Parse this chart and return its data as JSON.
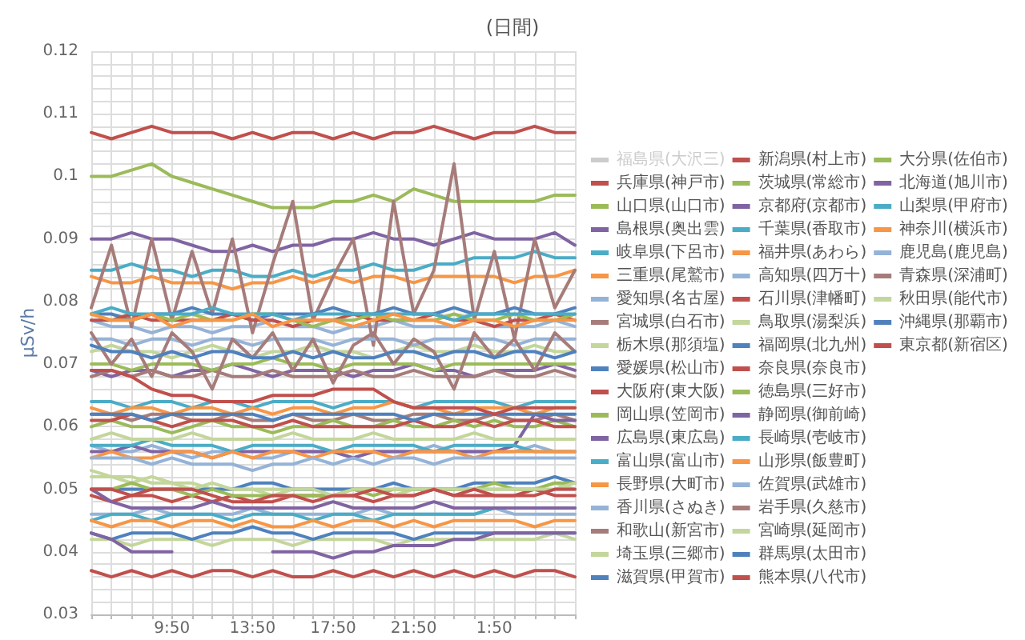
{
  "chart_data": {
    "type": "line",
    "title": "(日間)",
    "ylabel": "μSv/h",
    "categories": [
      null,
      null,
      null,
      null,
      "9:50",
      null,
      null,
      null,
      "13:50",
      null,
      null,
      null,
      "17:50",
      null,
      null,
      null,
      "21:50",
      null,
      null,
      null,
      "1:50",
      null,
      null,
      null,
      null
    ],
    "ylim": [
      0.03,
      0.12
    ],
    "yticks": [
      0.03,
      {
        "value": 0.032,
        "label": null
      },
      {
        "value": 0.034,
        "label": null
      },
      {
        "value": 0.036,
        "label": null
      },
      {
        "value": 0.038,
        "label": null
      },
      0.04,
      {
        "value": 0.042,
        "label": null
      },
      {
        "value": 0.044,
        "label": null
      },
      {
        "value": 0.046,
        "label": null
      },
      {
        "value": 0.048,
        "label": null
      },
      0.05,
      {
        "value": 0.052,
        "label": null
      },
      {
        "value": 0.054,
        "label": null
      },
      {
        "value": 0.056,
        "label": null
      },
      {
        "value": 0.058,
        "label": null
      },
      0.06,
      {
        "value": 0.062,
        "label": null
      },
      {
        "value": 0.064,
        "label": null
      },
      {
        "value": 0.066,
        "label": null
      },
      {
        "value": 0.068,
        "label": null
      },
      0.07,
      {
        "value": 0.072,
        "label": null
      },
      {
        "value": 0.074,
        "label": null
      },
      {
        "value": 0.076,
        "label": null
      },
      {
        "value": 0.078,
        "label": null
      },
      0.08,
      {
        "value": 0.082,
        "label": null
      },
      {
        "value": 0.084,
        "label": null
      },
      {
        "value": 0.086,
        "label": null
      },
      {
        "value": 0.088,
        "label": null
      },
      0.09,
      {
        "value": 0.092,
        "label": null
      },
      {
        "value": 0.094,
        "label": null
      },
      {
        "value": 0.096,
        "label": null
      },
      {
        "value": 0.098,
        "label": null
      },
      0.1,
      {
        "value": 0.102,
        "label": null
      },
      {
        "value": 0.104,
        "label": null
      },
      {
        "value": 0.106,
        "label": null
      },
      {
        "value": 0.108,
        "label": null
      },
      0.11,
      {
        "value": 0.112,
        "label": null
      },
      {
        "value": 0.114,
        "label": null
      },
      {
        "value": 0.116,
        "label": null
      },
      {
        "value": 0.118,
        "label": null
      },
      0.12
    ],
    "grid": true,
    "legend": "right",
    "marker": "none",
    "line_style": "solid",
    "series": [
      {
        "name": "福島県(大沢三)",
        "color": "#cccccc",
        "values": [
          null,
          null,
          null,
          null,
          null,
          null,
          null,
          null,
          null,
          null,
          null,
          null,
          null,
          null,
          null,
          null,
          null,
          null,
          null,
          null,
          null,
          null,
          null,
          null,
          null
        ]
      },
      {
        "name": "兵庫県(神戸市)",
        "color": "#c0504d",
        "values": [
          0.037,
          0.036,
          0.037,
          0.036,
          0.037,
          0.036,
          0.037,
          0.037,
          0.036,
          0.037,
          0.036,
          0.036,
          0.037,
          0.036,
          0.037,
          0.036,
          0.037,
          0.036,
          0.037,
          0.036,
          0.037,
          0.036,
          0.037,
          0.037,
          0.036
        ]
      },
      {
        "name": "山口県(山口市)",
        "color": "#9bbb59",
        "values": [
          0.1,
          0.1,
          0.101,
          0.102,
          0.1,
          0.099,
          0.098,
          0.097,
          0.096,
          0.095,
          0.095,
          0.095,
          0.096,
          0.096,
          0.097,
          0.096,
          0.098,
          0.097,
          0.096,
          0.096,
          0.096,
          0.096,
          0.096,
          0.097,
          0.097
        ]
      },
      {
        "name": "島根県(奥出雲)",
        "color": "#8064a2",
        "values": [
          0.09,
          0.09,
          0.091,
          0.09,
          0.09,
          0.089,
          0.088,
          0.088,
          0.089,
          0.088,
          0.089,
          0.089,
          0.09,
          0.09,
          0.091,
          0.09,
          0.09,
          0.089,
          0.09,
          0.091,
          0.09,
          0.09,
          0.09,
          0.091,
          0.089
        ]
      },
      {
        "name": "岐阜県(下呂市)",
        "color": "#4bacc6",
        "values": [
          0.085,
          0.085,
          0.086,
          0.085,
          0.085,
          0.084,
          0.085,
          0.085,
          0.084,
          0.084,
          0.085,
          0.084,
          0.085,
          0.085,
          0.086,
          0.085,
          0.085,
          0.086,
          0.086,
          0.087,
          0.087,
          0.087,
          0.088,
          0.087,
          0.087
        ]
      },
      {
        "name": "三重県(尾鷲市)",
        "color": "#f79646",
        "values": [
          0.084,
          0.083,
          0.083,
          0.084,
          0.083,
          0.083,
          0.083,
          0.082,
          0.083,
          0.083,
          0.084,
          0.083,
          0.084,
          0.083,
          0.084,
          0.084,
          0.083,
          0.084,
          0.084,
          0.084,
          0.084,
          0.083,
          0.084,
          0.084,
          0.085
        ]
      },
      {
        "name": "愛知県(名古屋)",
        "color": "#95b3d7",
        "values": [
          0.077,
          0.076,
          0.076,
          0.075,
          0.076,
          0.076,
          0.075,
          0.076,
          0.076,
          0.077,
          0.076,
          0.076,
          0.075,
          0.076,
          0.076,
          0.077,
          0.076,
          0.076,
          0.076,
          0.077,
          0.076,
          0.076,
          0.076,
          0.077,
          0.076
        ]
      },
      {
        "name": "宮城県(白石市)",
        "color": "#a67c7a",
        "values": [
          0.079,
          0.089,
          0.076,
          0.09,
          0.077,
          0.088,
          0.078,
          0.09,
          0.075,
          0.086,
          0.096,
          0.077,
          0.084,
          0.09,
          0.073,
          0.096,
          0.078,
          0.085,
          0.102,
          0.077,
          0.088,
          0.074,
          0.09,
          0.079,
          0.085
        ]
      },
      {
        "name": "栃木県(那須塩)",
        "color": "#c3d69b",
        "values": [
          0.072,
          0.073,
          0.072,
          0.072,
          0.071,
          0.072,
          0.073,
          0.072,
          0.071,
          0.072,
          0.072,
          0.073,
          0.072,
          0.072,
          0.071,
          0.072,
          0.073,
          0.072,
          0.072,
          0.073,
          0.072,
          0.072,
          0.073,
          0.072,
          0.072
        ]
      },
      {
        "name": "愛媛県(松山市)",
        "color": "#4f81bd",
        "values": [
          0.078,
          0.078,
          0.077,
          0.078,
          0.078,
          0.079,
          0.078,
          0.078,
          0.077,
          0.078,
          0.078,
          0.078,
          0.079,
          0.078,
          0.078,
          0.079,
          0.078,
          0.078,
          0.079,
          0.078,
          0.078,
          0.079,
          0.078,
          0.078,
          0.079
        ]
      },
      {
        "name": "大阪府(東大阪)",
        "color": "#c0504d",
        "values": [
          0.077,
          0.077,
          0.078,
          0.077,
          0.077,
          0.077,
          0.077,
          0.078,
          0.077,
          0.077,
          0.076,
          0.077,
          0.077,
          0.078,
          0.077,
          0.077,
          0.077,
          0.078,
          0.077,
          0.077,
          0.076,
          0.077,
          0.077,
          0.078,
          0.077
        ]
      },
      {
        "name": "岡山県(笠岡市)",
        "color": "#9bbb59",
        "values": [
          0.078,
          0.077,
          0.077,
          0.078,
          0.077,
          0.078,
          0.077,
          0.077,
          0.078,
          0.078,
          0.077,
          0.076,
          0.077,
          0.077,
          0.078,
          0.077,
          0.077,
          0.077,
          0.078,
          0.077,
          0.077,
          0.078,
          0.077,
          0.077,
          0.078
        ]
      },
      {
        "name": "広島県(東広島)",
        "color": "#8064a2",
        "values": [
          0.069,
          0.068,
          0.069,
          0.069,
          0.068,
          0.069,
          0.069,
          0.07,
          0.069,
          0.068,
          0.069,
          0.069,
          0.069,
          0.068,
          0.069,
          0.069,
          0.07,
          0.069,
          0.069,
          0.068,
          0.069,
          0.069,
          0.069,
          0.07,
          0.069
        ]
      },
      {
        "name": "富山県(富山市)",
        "color": "#4bacc6",
        "values": [
          0.064,
          0.064,
          0.063,
          0.064,
          0.064,
          0.063,
          0.064,
          0.064,
          0.063,
          0.064,
          0.064,
          0.064,
          0.063,
          0.064,
          0.064,
          0.064,
          0.063,
          0.064,
          0.064,
          0.064,
          0.064,
          0.063,
          0.064,
          0.064,
          0.064
        ]
      },
      {
        "name": "長野県(大町市)",
        "color": "#f79646",
        "values": [
          0.063,
          0.062,
          0.063,
          0.063,
          0.062,
          0.063,
          0.063,
          0.062,
          0.063,
          0.062,
          0.063,
          0.063,
          0.062,
          0.063,
          0.063,
          0.064,
          0.063,
          0.063,
          0.062,
          0.063,
          0.063,
          0.063,
          0.062,
          0.063,
          0.063
        ]
      },
      {
        "name": "香川県(さぬき)",
        "color": "#95b3d7",
        "values": [
          0.057,
          0.056,
          0.056,
          0.057,
          0.056,
          0.055,
          0.056,
          0.056,
          0.055,
          0.055,
          0.056,
          0.056,
          0.056,
          0.055,
          0.056,
          0.056,
          0.056,
          0.057,
          0.056,
          0.056,
          0.056,
          0.056,
          0.057,
          0.056,
          0.056
        ]
      },
      {
        "name": "和歌山(新宮市)",
        "color": "#a67c7a",
        "values": [
          0.062,
          0.062,
          0.061,
          0.062,
          0.062,
          0.061,
          0.061,
          0.062,
          0.061,
          0.061,
          0.062,
          0.061,
          0.061,
          0.062,
          0.061,
          0.061,
          0.062,
          0.062,
          0.061,
          0.061,
          0.062,
          0.061,
          0.061,
          0.062,
          0.061
        ]
      },
      {
        "name": "埼玉県(三郷市)",
        "color": "#c3d69b",
        "values": [
          0.042,
          0.042,
          0.041,
          0.042,
          0.042,
          0.042,
          0.041,
          0.042,
          0.042,
          0.042,
          0.041,
          0.042,
          0.042,
          0.042,
          0.042,
          0.041,
          0.042,
          0.042,
          0.042,
          0.042,
          0.042,
          0.042,
          0.042,
          0.043,
          0.042
        ]
      },
      {
        "name": "滋賀県(甲賀市)",
        "color": "#4f81bd",
        "values": [
          0.043,
          0.042,
          0.043,
          0.043,
          0.043,
          0.042,
          0.043,
          0.043,
          0.044,
          0.043,
          0.043,
          0.042,
          0.043,
          0.043,
          0.043,
          0.043,
          0.042,
          0.043,
          0.043,
          0.043,
          0.043,
          0.043,
          0.043,
          0.043,
          0.043
        ]
      },
      {
        "name": "新潟県(村上市)",
        "color": "#c0504d",
        "values": [
          0.107,
          0.106,
          0.107,
          0.108,
          0.107,
          0.107,
          0.107,
          0.106,
          0.107,
          0.106,
          0.107,
          0.107,
          0.106,
          0.107,
          0.106,
          0.107,
          0.107,
          0.108,
          0.107,
          0.106,
          0.107,
          0.107,
          0.108,
          0.107,
          0.107
        ]
      },
      {
        "name": "茨城県(常総市)",
        "color": "#9bbb59",
        "values": [
          0.06,
          0.061,
          0.06,
          0.06,
          0.059,
          0.06,
          0.061,
          0.06,
          0.06,
          0.059,
          0.06,
          0.06,
          0.061,
          0.06,
          0.06,
          0.061,
          0.06,
          0.06,
          0.061,
          0.06,
          0.061,
          0.06,
          0.06,
          0.061,
          0.06
        ]
      },
      {
        "name": "京都府(京都市)",
        "color": "#8064a2",
        "values": [
          0.056,
          0.056,
          0.057,
          0.056,
          0.056,
          0.056,
          0.055,
          0.056,
          0.056,
          0.056,
          0.056,
          0.056,
          0.056,
          0.055,
          0.056,
          0.056,
          0.056,
          0.056,
          0.056,
          0.056,
          0.056,
          0.057,
          0.062,
          0.061,
          0.061
        ]
      },
      {
        "name": "千葉県(香取市)",
        "color": "#4bacc6",
        "values": [
          0.057,
          0.057,
          0.057,
          0.058,
          0.057,
          0.057,
          0.057,
          0.056,
          0.057,
          0.057,
          0.057,
          0.057,
          0.056,
          0.057,
          0.057,
          0.057,
          0.057,
          0.056,
          0.057,
          0.057,
          0.057,
          0.057,
          0.056,
          0.056,
          0.056
        ]
      },
      {
        "name": "福井県(あわら)",
        "color": "#f79646",
        "values": [
          0.055,
          0.056,
          0.055,
          0.055,
          0.056,
          0.056,
          0.055,
          0.056,
          0.055,
          0.056,
          0.056,
          0.055,
          0.056,
          0.056,
          0.056,
          0.055,
          0.056,
          0.056,
          0.056,
          0.055,
          0.056,
          0.056,
          0.056,
          0.056,
          0.056
        ]
      },
      {
        "name": "高知県(四万十)",
        "color": "#95b3d7",
        "values": [
          0.046,
          0.046,
          0.046,
          0.047,
          0.046,
          0.046,
          0.046,
          0.046,
          0.047,
          0.046,
          0.046,
          0.046,
          0.046,
          0.046,
          0.047,
          0.046,
          0.046,
          0.046,
          0.046,
          0.046,
          0.047,
          0.046,
          0.046,
          0.046,
          0.046
        ]
      },
      {
        "name": "石川県(津幡町)",
        "color": "#c0504d",
        "values": [
          0.049,
          0.048,
          0.049,
          0.049,
          0.048,
          0.049,
          0.048,
          0.049,
          0.048,
          0.048,
          0.049,
          0.049,
          0.049,
          0.049,
          0.048,
          0.049,
          0.049,
          0.05,
          0.049,
          0.049,
          0.049,
          0.049,
          0.05,
          0.049,
          0.049
        ]
      },
      {
        "name": "鳥取県(湯梨浜)",
        "color": "#c3d69b",
        "values": [
          0.052,
          0.052,
          0.051,
          0.052,
          0.051,
          0.051,
          0.05,
          0.05,
          0.05,
          0.049,
          0.05,
          0.05,
          0.05,
          0.05,
          0.05,
          0.049,
          0.05,
          0.05,
          0.05,
          0.05,
          0.05,
          0.05,
          0.05,
          0.051,
          0.05
        ]
      },
      {
        "name": "福岡県(北九州)",
        "color": "#4f81bd",
        "values": [
          0.05,
          0.05,
          0.05,
          0.05,
          0.05,
          0.05,
          0.05,
          0.05,
          0.051,
          0.051,
          0.05,
          0.05,
          0.05,
          0.05,
          0.05,
          0.051,
          0.05,
          0.05,
          0.05,
          0.051,
          0.051,
          0.051,
          0.051,
          0.052,
          0.051
        ]
      },
      {
        "name": "奈良県(奈良市)",
        "color": "#c0504d",
        "values": [
          0.061,
          0.061,
          0.062,
          0.061,
          0.06,
          0.061,
          0.061,
          0.061,
          0.06,
          0.06,
          0.061,
          0.06,
          0.06,
          0.06,
          0.06,
          0.06,
          0.061,
          0.06,
          0.06,
          0.061,
          0.06,
          0.061,
          0.061,
          0.06,
          0.06
        ]
      },
      {
        "name": "徳島県(三好市)",
        "color": "#9bbb59",
        "values": [
          0.05,
          0.05,
          0.051,
          0.05,
          0.05,
          0.049,
          0.05,
          0.049,
          0.049,
          0.049,
          0.049,
          0.049,
          0.049,
          0.05,
          0.049,
          0.05,
          0.05,
          0.05,
          0.05,
          0.05,
          0.051,
          0.05,
          0.05,
          0.051,
          0.051
        ]
      },
      {
        "name": "静岡県(御前崎)",
        "color": "#8064a2",
        "values": [
          0.043,
          0.042,
          0.04,
          0.04,
          0.04,
          null,
          null,
          null,
          null,
          0.04,
          0.04,
          0.04,
          0.039,
          0.04,
          0.04,
          0.041,
          0.041,
          0.041,
          0.042,
          0.042,
          0.043,
          0.043,
          0.043,
          0.043,
          0.043
        ]
      },
      {
        "name": "長崎県(壱岐市)",
        "color": "#4bacc6",
        "values": [
          0.045,
          0.046,
          0.046,
          0.045,
          0.046,
          0.046,
          0.046,
          0.045,
          0.046,
          0.046,
          0.046,
          0.045,
          0.046,
          0.046,
          0.045,
          0.046,
          0.046,
          0.046,
          0.046,
          0.046,
          0.047,
          0.047,
          0.047,
          0.047,
          0.047
        ]
      },
      {
        "name": "山形県(飯豊町)",
        "color": "#f79646",
        "values": [
          0.045,
          0.044,
          0.045,
          0.045,
          0.044,
          0.045,
          0.045,
          0.044,
          0.045,
          0.044,
          0.044,
          0.045,
          0.044,
          0.045,
          0.045,
          0.044,
          0.045,
          0.044,
          0.045,
          0.045,
          0.045,
          0.045,
          0.044,
          0.045,
          0.045
        ]
      },
      {
        "name": "佐賀県(武雄市)",
        "color": "#95b3d7",
        "values": [
          0.055,
          0.055,
          0.055,
          0.054,
          0.055,
          0.054,
          0.054,
          0.054,
          0.053,
          0.054,
          0.054,
          0.055,
          0.054,
          0.055,
          0.054,
          0.055,
          0.055,
          0.054,
          0.055,
          0.055,
          0.055,
          0.055,
          0.055,
          0.055,
          0.055
        ]
      },
      {
        "name": "岩手県(久慈市)",
        "color": "#a67c7a",
        "values": [
          0.068,
          0.069,
          0.068,
          0.069,
          0.068,
          0.068,
          0.069,
          0.068,
          0.068,
          0.069,
          0.068,
          0.068,
          0.068,
          0.069,
          0.068,
          0.068,
          0.069,
          0.068,
          0.068,
          0.068,
          0.069,
          0.068,
          0.068,
          0.069,
          0.068
        ]
      },
      {
        "name": "宮崎県(延岡市)",
        "color": "#c3d69b",
        "values": [
          0.058,
          0.059,
          0.058,
          0.058,
          0.058,
          0.059,
          0.058,
          0.058,
          0.058,
          0.058,
          0.059,
          0.058,
          0.058,
          0.058,
          0.059,
          0.058,
          0.058,
          0.058,
          0.058,
          0.059,
          0.058,
          0.058,
          0.058,
          0.058,
          0.058
        ]
      },
      {
        "name": "群馬県(太田市)",
        "color": "#4f81bd",
        "values": [
          0.062,
          0.062,
          0.062,
          0.061,
          0.062,
          0.062,
          0.062,
          0.062,
          0.062,
          0.061,
          0.062,
          0.062,
          0.062,
          0.062,
          0.062,
          0.062,
          0.061,
          0.062,
          0.062,
          0.062,
          0.062,
          0.062,
          0.062,
          0.062,
          0.062
        ]
      },
      {
        "name": "熊本県(八代市)",
        "color": "#c0504d",
        "values": [
          0.069,
          0.069,
          0.068,
          0.066,
          0.065,
          0.065,
          0.064,
          0.064,
          0.064,
          0.065,
          0.065,
          0.065,
          0.066,
          0.066,
          0.066,
          0.064,
          0.063,
          0.063,
          0.063,
          0.063,
          0.062,
          0.063,
          0.063,
          0.063,
          0.063
        ]
      },
      {
        "name": "大分県(佐伯市)",
        "color": "#9bbb59",
        "values": [
          0.07,
          0.07,
          0.069,
          0.07,
          0.07,
          0.07,
          0.069,
          0.07,
          0.07,
          0.071,
          0.07,
          0.07,
          0.069,
          0.07,
          0.07,
          0.07,
          0.07,
          0.069,
          0.07,
          0.07,
          0.07,
          0.07,
          0.07,
          0.07,
          0.07
        ]
      },
      {
        "name": "北海道(旭川市)",
        "color": "#8064a2",
        "values": [
          0.05,
          0.048,
          0.047,
          0.047,
          0.047,
          0.047,
          0.048,
          0.047,
          0.047,
          0.047,
          0.047,
          0.047,
          0.048,
          0.047,
          0.047,
          0.047,
          0.047,
          0.048,
          0.047,
          0.047,
          0.047,
          0.047,
          0.047,
          0.047,
          0.047
        ]
      },
      {
        "name": "山梨県(甲府市)",
        "color": "#4bacc6",
        "values": [
          0.078,
          0.079,
          0.078,
          0.078,
          0.078,
          0.078,
          0.079,
          0.078,
          0.078,
          0.078,
          0.077,
          0.078,
          0.078,
          0.078,
          0.078,
          0.078,
          0.078,
          0.078,
          0.077,
          0.078,
          0.078,
          0.078,
          0.078,
          0.078,
          0.078
        ]
      },
      {
        "name": "神奈川(横浜市)",
        "color": "#f79646",
        "values": [
          0.078,
          0.077,
          0.077,
          0.078,
          0.076,
          0.077,
          0.077,
          0.077,
          0.078,
          0.076,
          0.077,
          0.077,
          0.077,
          0.076,
          0.077,
          0.078,
          0.077,
          0.077,
          0.076,
          0.077,
          0.077,
          0.076,
          0.077,
          0.077,
          0.077
        ]
      },
      {
        "name": "鹿児島(鹿児島)",
        "color": "#95b3d7",
        "values": [
          0.074,
          0.074,
          0.073,
          0.074,
          0.074,
          0.073,
          0.074,
          0.074,
          0.073,
          0.074,
          0.074,
          0.074,
          0.073,
          0.074,
          0.074,
          0.074,
          0.073,
          0.074,
          0.074,
          0.074,
          0.074,
          0.073,
          0.074,
          0.074,
          0.074
        ]
      },
      {
        "name": "青森県(深浦町)",
        "color": "#a67c7a",
        "values": [
          0.075,
          0.07,
          0.074,
          0.068,
          0.075,
          0.072,
          0.066,
          0.074,
          0.071,
          0.075,
          0.069,
          0.074,
          0.067,
          0.073,
          0.075,
          0.07,
          0.074,
          0.072,
          0.066,
          0.075,
          0.071,
          0.074,
          0.069,
          0.075,
          0.072
        ]
      },
      {
        "name": "秋田県(能代市)",
        "color": "#c3d69b",
        "values": [
          0.053,
          0.052,
          0.052,
          0.051,
          0.051,
          0.05,
          0.051,
          0.05,
          0.05,
          0.05,
          0.05,
          0.05,
          0.049,
          0.05,
          0.05,
          0.05,
          0.05,
          0.05,
          0.05,
          0.05,
          0.05,
          0.05,
          0.05,
          0.05,
          0.051
        ]
      },
      {
        "name": "沖縄県(那覇市)",
        "color": "#4f81bd",
        "values": [
          0.073,
          0.072,
          0.072,
          0.071,
          0.072,
          0.071,
          0.072,
          0.072,
          0.071,
          0.071,
          0.072,
          0.071,
          0.072,
          0.071,
          0.071,
          0.072,
          0.072,
          0.071,
          0.072,
          0.072,
          0.071,
          0.072,
          0.072,
          0.071,
          0.072
        ]
      },
      {
        "name": "東京都(新宿区)",
        "color": "#c0504d",
        "values": [
          0.05,
          0.05,
          0.049,
          0.05,
          0.05,
          0.05,
          0.049,
          0.048,
          0.048,
          0.049,
          0.049,
          0.048,
          0.049,
          0.049,
          0.05,
          0.049,
          0.049,
          0.05,
          0.049,
          0.05,
          0.049,
          0.049,
          0.049,
          0.05,
          0.05
        ]
      }
    ]
  }
}
